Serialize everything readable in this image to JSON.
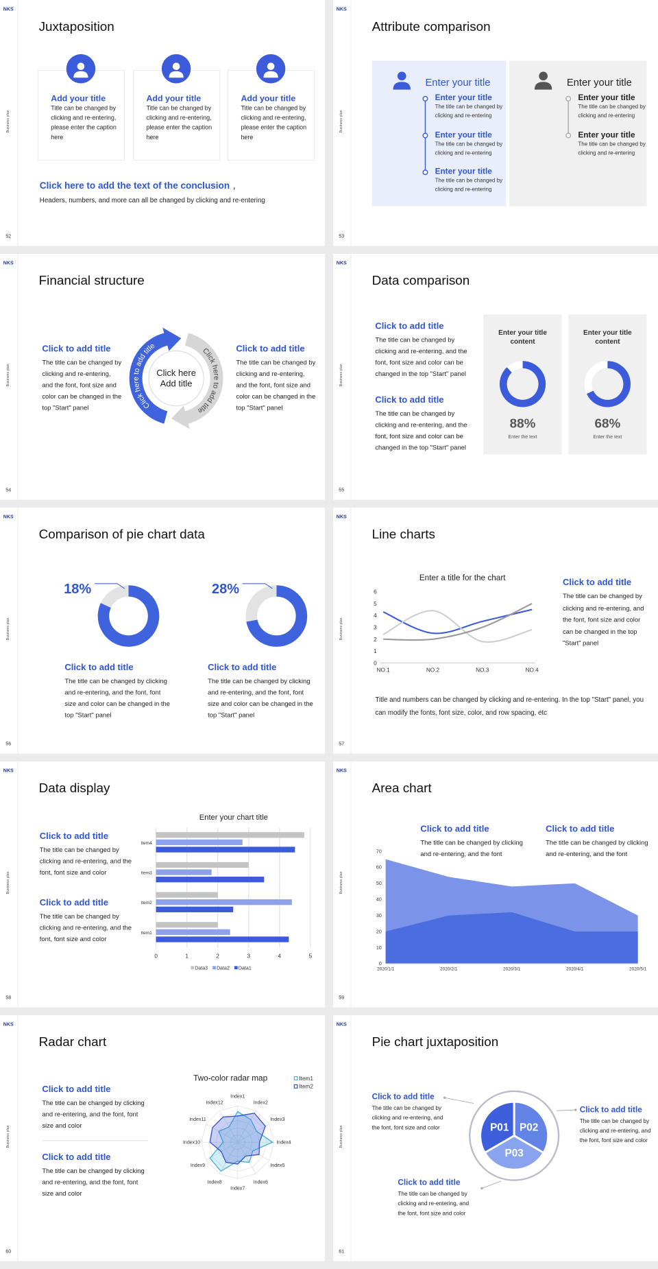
{
  "logo": "NKS",
  "side_label": "Business plan",
  "slides": [
    {
      "number": "52",
      "title": "Juxtaposition",
      "cards": [
        {
          "title": "Add your title",
          "text": "Title can be changed by clicking and re-entering, please enter the caption here"
        },
        {
          "title": "Add your title",
          "text": "Title can be changed by clicking and re-entering, please enter the caption here"
        },
        {
          "title": "Add your title",
          "text": "Title can be changed by clicking and re-entering, please enter the caption here"
        }
      ],
      "conclusion": {
        "title": "Click here to add the text of the conclusion",
        "separator": ",",
        "text": "Headers, numbers, and more can all be changed by clicking and re-entering"
      }
    },
    {
      "number": "53",
      "title": "Attribute comparison",
      "panels": [
        {
          "heading": "Enter your title",
          "items": [
            {
              "title": "Enter your title",
              "text": "The title can be changed by clicking and re-entering"
            },
            {
              "title": "Enter your title",
              "text": "The title can be changed by clicking and re-entering"
            },
            {
              "title": "Enter your title",
              "text": "The title can be changed by clicking and re-entering"
            }
          ]
        },
        {
          "heading": "Enter your title",
          "items": [
            {
              "title": "Enter your title",
              "text": "The title can be changed by clicking and re-entering"
            },
            {
              "title": "Enter your title",
              "text": "The title can be changed by clicking and re-entering"
            }
          ]
        }
      ]
    },
    {
      "number": "54",
      "title": "Financial structure",
      "left": {
        "title": "Click to add title",
        "text": "The title can be changed by clicking and re-entering, and the font, font size and color can be changed in the top \"Start\" panel"
      },
      "center": [
        "Click here",
        "Add title"
      ],
      "arcs": [
        "Click here to add title",
        "Click here to add title"
      ],
      "right": {
        "title": "Click to add title",
        "text": "The title can be changed by clicking and re-entering, and the font, font size and color can be changed in the top \"Start\" panel"
      }
    },
    {
      "number": "55",
      "title": "Data comparison",
      "blocks": [
        {
          "title": "Click to add title",
          "text": "The title can be changed by clicking and re-entering, and the font, font size and color can be changed in the top \"Start\" panel"
        },
        {
          "title": "Click to add title",
          "text": "The title can be changed by clicking and re-entering, and the font, font size and color can be changed in the top \"Start\" panel"
        }
      ],
      "cards": {
        "titles": [
          "Enter your title content",
          "Enter your title content"
        ],
        "values": [
          88,
          68
        ],
        "value_labels": [
          "88%",
          "68%"
        ],
        "captions": [
          "Enter the text",
          "Enter the text"
        ]
      }
    },
    {
      "number": "56",
      "title": "Comparison of pie chart data",
      "donuts": {
        "values": [
          18,
          28
        ],
        "value_labels": [
          "18%",
          "28%"
        ]
      },
      "blocks": [
        {
          "title": "Click to add title",
          "text": "The title can be changed by clicking and re-entering, and the font, font size and color can be changed in the top \"Start\" panel"
        },
        {
          "title": "Click to add title",
          "text": "The title can be changed by clicking and re-entering, and the font, font size and color can be changed in the top \"Start\" panel"
        }
      ]
    },
    {
      "number": "57",
      "title": "Line charts",
      "chart": {
        "type": "line",
        "title": "Enter a title for the chart",
        "categories": [
          "NO.1",
          "NO.2",
          "NO.3",
          "NO.4"
        ],
        "series": [
          {
            "color": "#3b5bdb",
            "values": [
              4.3,
              2.5,
              3.5,
              4.5
            ]
          },
          {
            "color": "#cfcfcf",
            "values": [
              2.4,
              4.4,
              1.8,
              2.8
            ]
          },
          {
            "color": "#9a9a9a",
            "values": [
              2,
              2,
              3,
              5
            ]
          }
        ],
        "ylim": [
          0,
          6
        ],
        "yticks": [
          0,
          1,
          2,
          3,
          4,
          5,
          6
        ]
      },
      "side": {
        "title": "Click to add title",
        "text": "The title can be changed by clicking and re-entering, and the font, font size and color can be changed in the top \"Start\" panel"
      },
      "note": "Title and numbers can be changed by clicking and re-entering. In the top \"Start\" panel, you can modify the fonts, font size, color, and row spacing, etc"
    },
    {
      "number": "58",
      "title": "Data display",
      "chart": {
        "type": "bar",
        "orientation": "horizontal",
        "title": "Enter your chart title",
        "categories": [
          "Item1",
          "Item2",
          "Item3",
          "Item4"
        ],
        "series": [
          {
            "name": "Data1",
            "color": "#3b5bdb",
            "values": [
              4.3,
              2.5,
              3.5,
              4.5
            ]
          },
          {
            "name": "Data2",
            "color": "#8ea2ec",
            "values": [
              2.4,
              4.4,
              1.8,
              2.8
            ]
          },
          {
            "name": "Data3",
            "color": "#c3c3c3",
            "values": [
              2,
              2,
              3,
              4.8
            ]
          }
        ],
        "xlim": [
          0,
          5
        ],
        "xticks": [
          0,
          1,
          2,
          3,
          4,
          5
        ],
        "grid": true
      },
      "blocks": [
        {
          "title": "Click to add title",
          "text": "The title can be changed by clicking and re-entering, and the font, font size and color"
        },
        {
          "title": "Click to add title",
          "text": "The title can be changed by clicking and re-entering, and the font, font size and color"
        }
      ]
    },
    {
      "number": "59",
      "title": "Area chart",
      "chart": {
        "type": "area",
        "categories": [
          "2020/1/1",
          "2020/2/1",
          "2020/3/1",
          "2020/4/1",
          "2020/5/1"
        ],
        "series": [
          {
            "color": "#7b93e8",
            "values": [
              65,
              54,
              48,
              50,
              30
            ]
          },
          {
            "color": "#4a6ee0",
            "values": [
              20,
              30,
              32,
              20,
              20
            ]
          }
        ],
        "ylim": [
          0,
          70
        ],
        "yticks": [
          0,
          10,
          20,
          30,
          40,
          50,
          60,
          70
        ]
      },
      "blocks": [
        {
          "title": "Click to add title",
          "text": "The title can be changed by clicking and re-entering, and the font"
        },
        {
          "title": "Click to add title",
          "text": "The title can be changed by clicking and re-entering, and the font"
        }
      ]
    },
    {
      "number": "60",
      "title": "Radar chart",
      "chart": {
        "type": "radar",
        "title": "Two-color radar map",
        "categories": [
          "Index1",
          "Index2",
          "Index3",
          "Index4",
          "Index5",
          "Index6",
          "Index7",
          "Index8",
          "Index9",
          "Index10",
          "Index11",
          "Index12"
        ],
        "series": [
          {
            "name": "Item1",
            "color": "#45b0d4",
            "values": [
              4.2,
              3.6,
              3,
              4.8,
              2.4,
              3.2,
              2.6,
              4.6,
              4.4,
              2,
              3,
              2.4
            ]
          },
          {
            "name": "Item2",
            "color": "#3450c8",
            "values": [
              3.6,
              4.6,
              4.4,
              3,
              3.4,
              2.2,
              3,
              3.2,
              2.6,
              3.8,
              4,
              4
            ]
          }
        ],
        "rlim": [
          0,
          5
        ],
        "rticks": [
          1,
          2,
          3,
          4,
          5
        ]
      },
      "blocks": [
        {
          "title": "Click to add title",
          "text": "The title can be changed by clicking and re-entering, and the font, font size and color"
        },
        {
          "title": "Click to add title",
          "text": "The title can be changed by clicking and re-entering, and the font, font size and color"
        }
      ]
    },
    {
      "number": "61",
      "title": "Pie chart juxtaposition",
      "segments": [
        "P01",
        "P02",
        "P03"
      ],
      "blocks": [
        {
          "title": "Click to add title",
          "text": "The title can be changed by clicking and re-entering, and the font, font size and color"
        },
        {
          "title": "Click to add title",
          "text": "The title can be changed by clicking and re-entering, and the font, font size and color"
        },
        {
          "title": "Click to add title",
          "text": "The title can be changed by clicking and re-entering, and the font, font size and color"
        }
      ]
    }
  ]
}
